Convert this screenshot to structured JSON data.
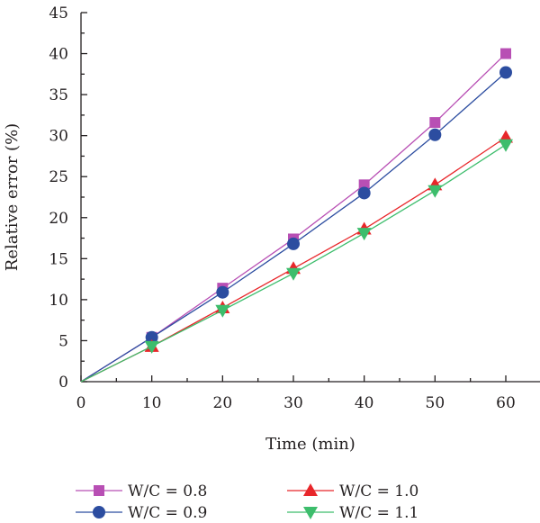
{
  "chart_data": {
    "type": "line",
    "xlabel": "Time (min)",
    "ylabel": "Relative error (%)",
    "xlim": [
      0,
      60
    ],
    "ylim": [
      0,
      45
    ],
    "xticks": [
      "0",
      "10",
      "20",
      "30",
      "40",
      "50",
      "60"
    ],
    "yticks": [
      "0",
      "5",
      "10",
      "15",
      "20",
      "25",
      "30",
      "35",
      "40",
      "45"
    ],
    "x": [
      0,
      10,
      20,
      30,
      40,
      50,
      60
    ],
    "grid": false,
    "legend_position": "bottom",
    "series": [
      {
        "name": "W/C = 0.8",
        "marker": "square",
        "color": "#b84fb4",
        "values": [
          0,
          5.4,
          11.4,
          17.4,
          24.0,
          31.6,
          40.0
        ]
      },
      {
        "name": "W/C = 0.9",
        "marker": "circle",
        "color": "#2c4da0",
        "values": [
          0,
          5.4,
          10.9,
          16.8,
          23.0,
          30.1,
          37.7
        ]
      },
      {
        "name": "W/C = 1.0",
        "marker": "triangle-up",
        "color": "#e8262a",
        "values": [
          0,
          4.3,
          9.0,
          13.8,
          18.6,
          24.0,
          29.8
        ]
      },
      {
        "name": "W/C = 1.1",
        "marker": "triangle-down",
        "color": "#3dbd6c",
        "values": [
          0,
          4.3,
          8.7,
          13.2,
          18.1,
          23.3,
          28.9
        ]
      }
    ]
  }
}
